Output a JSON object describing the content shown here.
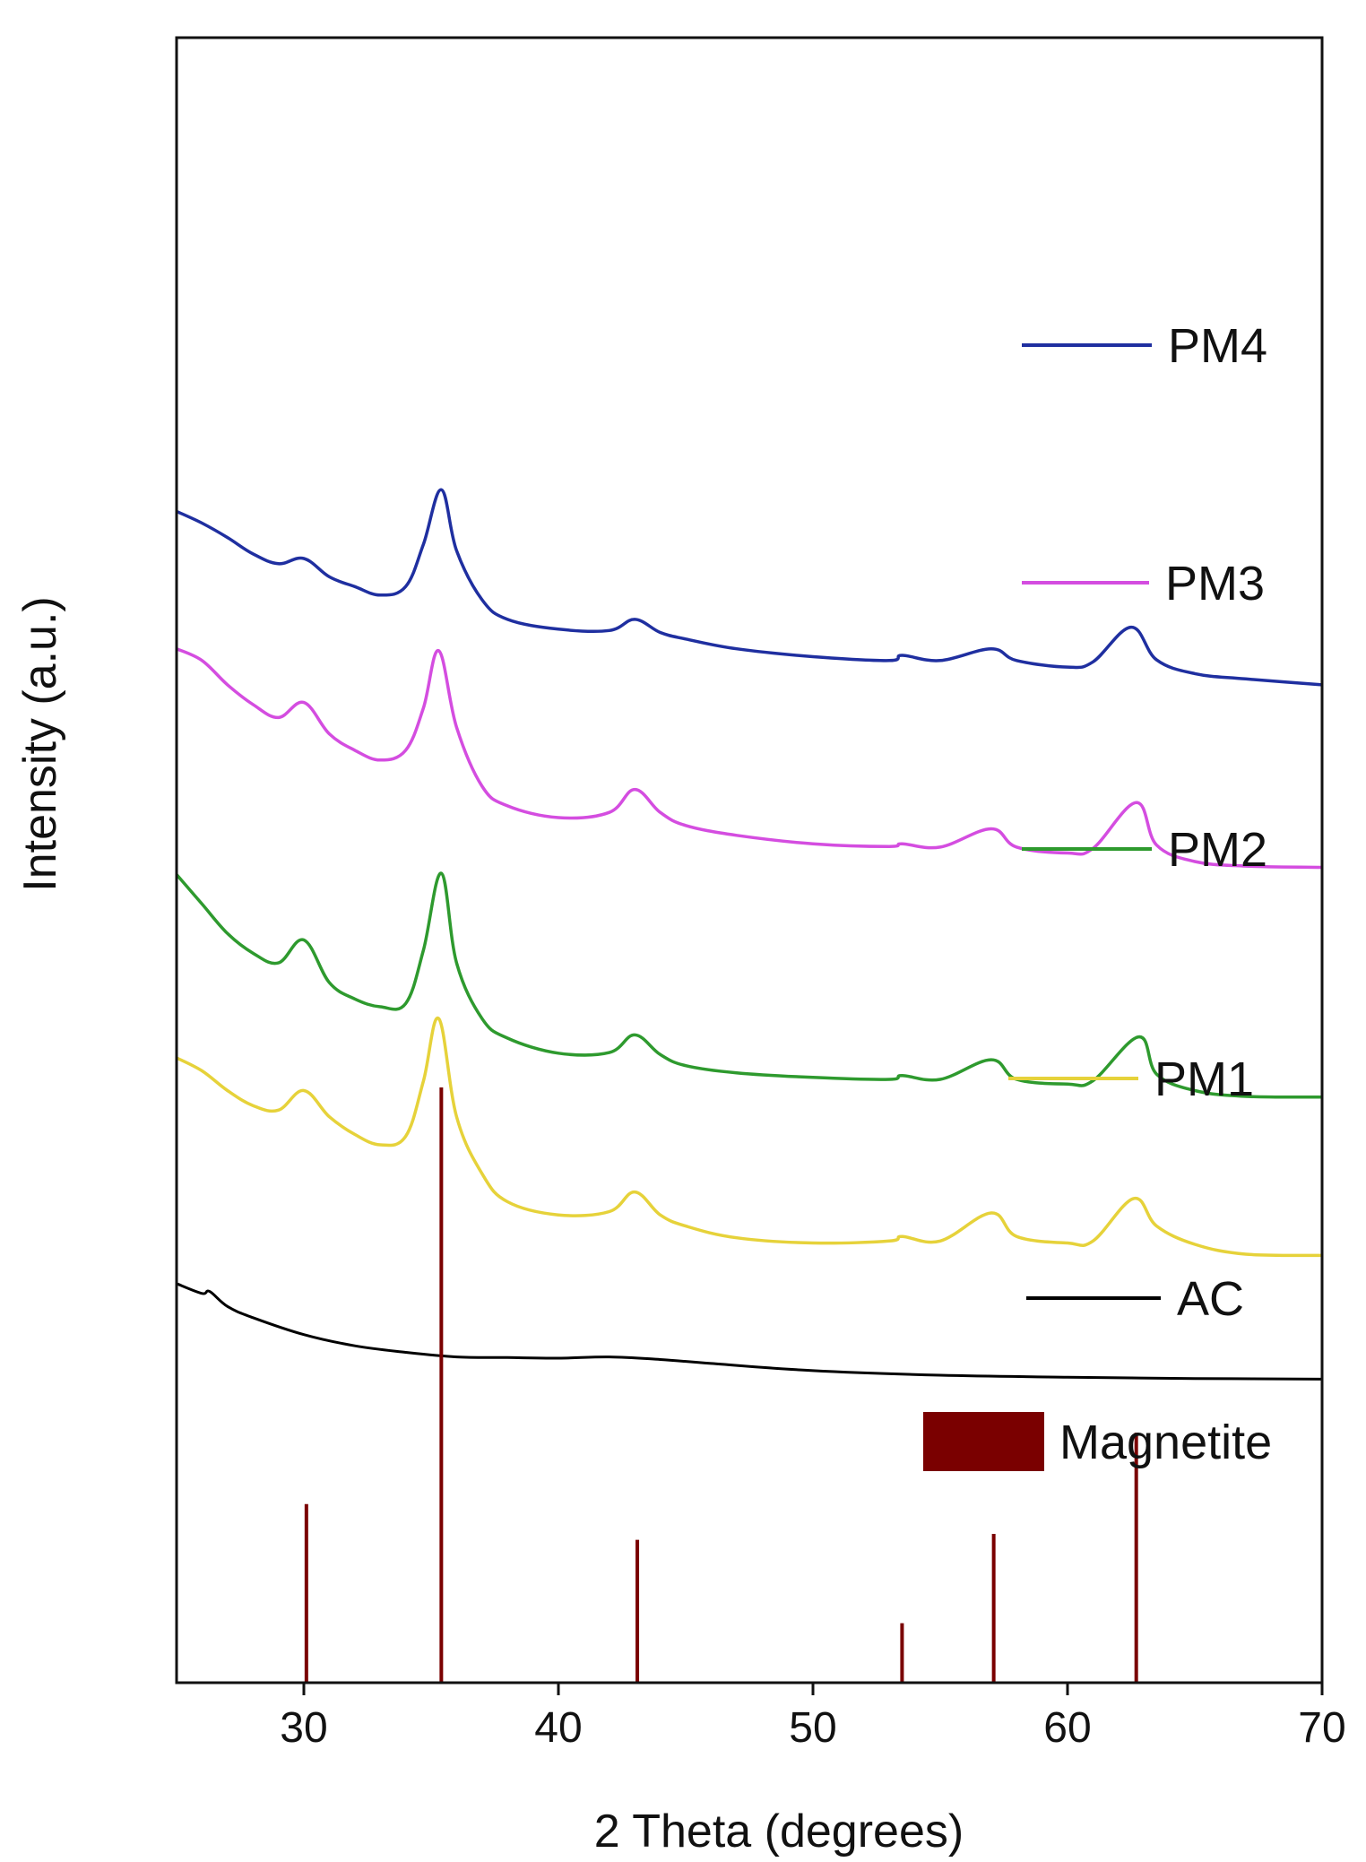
{
  "chart_data": {
    "type": "line",
    "title": "",
    "xlabel": "2 Theta (degrees)",
    "ylabel": "Intensity (a.u.)",
    "xlim": [
      25,
      70
    ],
    "xticks": [
      30,
      40,
      50,
      60,
      70
    ],
    "yticks_shown": false,
    "grid": false,
    "series": [
      {
        "name": "PM4",
        "color": "#1f2fa0",
        "x": [
          25,
          26,
          27,
          28,
          29,
          30,
          31,
          32,
          33,
          34,
          34.7,
          35.4,
          36,
          37,
          38,
          40,
          42,
          43,
          44,
          45,
          47,
          50,
          53,
          53.5,
          55,
          57,
          58,
          60,
          61,
          62.5,
          63.5,
          65,
          67,
          70
        ],
        "y": [
          9.2,
          9.02,
          8.8,
          8.55,
          8.4,
          8.48,
          8.2,
          8.05,
          7.92,
          8.05,
          8.7,
          9.53,
          8.6,
          7.85,
          7.55,
          7.4,
          7.38,
          7.55,
          7.35,
          7.25,
          7.1,
          6.98,
          6.92,
          7.0,
          6.92,
          7.1,
          6.92,
          6.82,
          6.9,
          7.43,
          6.93,
          6.72,
          6.64,
          6.55
        ]
      },
      {
        "name": "PM3",
        "color": "#d44de0",
        "x": [
          25,
          26,
          27,
          28,
          29,
          30,
          31,
          32,
          33,
          34,
          34.7,
          35.3,
          36,
          37,
          38,
          40,
          42,
          43,
          44,
          45,
          47,
          50,
          53,
          53.5,
          55,
          57,
          58,
          60,
          61,
          62.7,
          63.5,
          65,
          67,
          70
        ],
        "y": [
          7.1,
          6.92,
          6.55,
          6.25,
          6.05,
          6.28,
          5.8,
          5.55,
          5.4,
          5.55,
          6.2,
          7.07,
          5.9,
          5.0,
          4.7,
          4.52,
          4.6,
          4.95,
          4.6,
          4.4,
          4.25,
          4.12,
          4.08,
          4.12,
          4.07,
          4.35,
          4.07,
          3.98,
          4.05,
          4.75,
          4.1,
          3.85,
          3.78,
          3.76
        ]
      },
      {
        "name": "PM2",
        "color": "#2e9a2e",
        "x": [
          25,
          26,
          27,
          28,
          29,
          30,
          31,
          32,
          33,
          34,
          34.7,
          35.4,
          36,
          37,
          38,
          40,
          42,
          43,
          44,
          45,
          47,
          50,
          53,
          53.5,
          55,
          57,
          58,
          60,
          61,
          62.8,
          63.5,
          65,
          67,
          70
        ],
        "y": [
          3.65,
          3.2,
          2.75,
          2.45,
          2.3,
          2.65,
          2.0,
          1.75,
          1.63,
          1.68,
          2.5,
          3.67,
          2.3,
          1.45,
          1.15,
          0.92,
          0.93,
          1.2,
          0.9,
          0.73,
          0.62,
          0.55,
          0.52,
          0.58,
          0.52,
          0.82,
          0.52,
          0.45,
          0.5,
          1.17,
          0.6,
          0.35,
          0.26,
          0.25
        ]
      },
      {
        "name": "PM1",
        "color": "#e6d23a",
        "x": [
          25,
          26,
          27,
          28,
          29,
          30,
          31,
          32,
          33,
          34,
          34.7,
          35.3,
          36,
          37,
          38,
          40,
          42,
          43,
          44,
          45,
          47,
          50,
          53,
          53.5,
          55,
          57,
          58,
          60,
          61,
          62.6,
          63.5,
          65,
          67,
          70
        ],
        "y": [
          0.85,
          0.65,
          0.35,
          0.12,
          0.05,
          0.35,
          -0.05,
          -0.32,
          -0.48,
          -0.35,
          0.5,
          1.45,
          -0.05,
          -0.92,
          -1.35,
          -1.55,
          -1.5,
          -1.2,
          -1.55,
          -1.72,
          -1.9,
          -1.98,
          -1.95,
          -1.88,
          -1.95,
          -1.52,
          -1.88,
          -1.98,
          -1.95,
          -1.3,
          -1.72,
          -2.0,
          -2.15,
          -2.17
        ]
      },
      {
        "name": "AC",
        "color": "#000000",
        "x": [
          25,
          26,
          26.3,
          27,
          28,
          30,
          32,
          34,
          36,
          38,
          40,
          42,
          44,
          46,
          50,
          55,
          60,
          65,
          70
        ],
        "y": [
          -2.6,
          -2.75,
          -2.72,
          -2.95,
          -3.12,
          -3.38,
          -3.55,
          -3.65,
          -3.72,
          -3.73,
          -3.74,
          -3.72,
          -3.76,
          -3.82,
          -3.93,
          -4.0,
          -4.03,
          -4.05,
          -4.06
        ]
      }
    ],
    "reference": {
      "name": "Magnetite",
      "color": "#7a0000",
      "positions": [
        30.1,
        35.4,
        43.1,
        53.5,
        57.1,
        62.7
      ],
      "relative_intensities": [
        30,
        100,
        24,
        10,
        25,
        42
      ]
    },
    "legend": [
      "PM4",
      "PM3",
      "PM2",
      "PM1",
      "AC",
      "Magnetite"
    ]
  }
}
